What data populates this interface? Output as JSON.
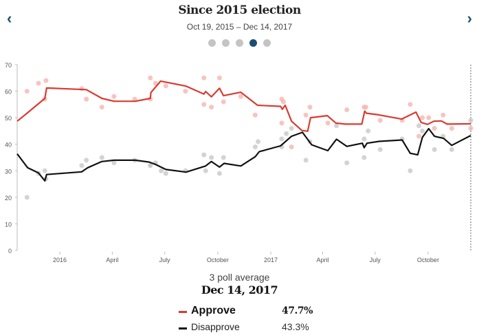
{
  "header": {
    "title": "Since 2015 election",
    "subtitle": "Oct 19, 2015 – Dec 14, 2017",
    "prev_icon": "chevron-left-icon",
    "next_icon": "chevron-right-icon",
    "pages": 5,
    "active_page": 4,
    "accent_color": "#1b4f72"
  },
  "legend": {
    "caption": "3 poll average",
    "date": "Dec 14, 2017",
    "items": [
      {
        "label": "Approve",
        "value": "47.7%",
        "color": "#d93a2f"
      },
      {
        "label": "Disapprove",
        "value": "43.3%",
        "color": "#111111"
      }
    ]
  },
  "chart_data": {
    "type": "line",
    "title": "Since 2015 election",
    "xlim": [
      "2015-10-19",
      "2017-12-14"
    ],
    "ylim": [
      0,
      70
    ],
    "yticks": [
      "0",
      "10",
      "20",
      "30",
      "40",
      "50",
      "60",
      "70"
    ],
    "xticks": [
      {
        "date": "2016-01-01",
        "label": "2016"
      },
      {
        "date": "2016-04-01",
        "label": "April"
      },
      {
        "date": "2016-07-01",
        "label": "July"
      },
      {
        "date": "2016-10-01",
        "label": "October"
      },
      {
        "date": "2017-01-01",
        "label": "2017"
      },
      {
        "date": "2017-04-01",
        "label": "April"
      },
      {
        "date": "2017-07-01",
        "label": "July"
      },
      {
        "date": "2017-10-01",
        "label": "October"
      }
    ],
    "grid": false,
    "series": [
      {
        "name": "Approve",
        "color": "#d93a2f",
        "poll_color": "#f5b5b0",
        "average": [
          [
            "2015-10-19",
            48.7
          ],
          [
            "2015-11-05",
            51.7
          ],
          [
            "2015-12-06",
            57.3
          ],
          [
            "2015-12-09",
            61.2
          ],
          [
            "2016-02-16",
            60.6
          ],
          [
            "2016-03-14",
            57.3
          ],
          [
            "2016-04-04",
            56.2
          ],
          [
            "2016-05-11",
            56.2
          ],
          [
            "2016-06-06",
            57.3
          ],
          [
            "2016-06-07",
            59.5
          ],
          [
            "2016-06-24",
            63.8
          ],
          [
            "2016-08-07",
            61.9
          ],
          [
            "2016-09-07",
            58.9
          ],
          [
            "2016-09-10",
            59.9
          ],
          [
            "2016-09-20",
            57.9
          ],
          [
            "2016-10-04",
            61.1
          ],
          [
            "2016-10-11",
            58.3
          ],
          [
            "2016-11-10",
            59.6
          ],
          [
            "2016-12-09",
            54.7
          ],
          [
            "2017-01-18",
            54.3
          ],
          [
            "2017-01-21",
            53.2
          ],
          [
            "2017-01-26",
            54.7
          ],
          [
            "2017-02-06",
            48.7
          ],
          [
            "2017-02-24",
            45.2
          ],
          [
            "2017-03-06",
            44.9
          ],
          [
            "2017-03-11",
            50.0
          ],
          [
            "2017-04-09",
            50.8
          ],
          [
            "2017-04-24",
            48.0
          ],
          [
            "2017-05-10",
            47.6
          ],
          [
            "2017-06-08",
            47.6
          ],
          [
            "2017-06-13",
            52.5
          ],
          [
            "2017-06-16",
            51.7
          ],
          [
            "2017-07-07",
            51.1
          ],
          [
            "2017-08-16",
            49.5
          ],
          [
            "2017-09-10",
            52.1
          ],
          [
            "2017-09-19",
            48.2
          ],
          [
            "2017-09-30",
            47.5
          ],
          [
            "2017-10-11",
            48.7
          ],
          [
            "2017-10-24",
            48.8
          ],
          [
            "2017-11-03",
            47.6
          ],
          [
            "2017-12-14",
            47.7
          ]
        ],
        "polls": [
          [
            "2015-11-05",
            60
          ],
          [
            "2015-11-25",
            63
          ],
          [
            "2015-12-06",
            57
          ],
          [
            "2015-12-08",
            64
          ],
          [
            "2016-02-08",
            61
          ],
          [
            "2016-02-16",
            57
          ],
          [
            "2016-03-14",
            54
          ],
          [
            "2016-04-04",
            58
          ],
          [
            "2016-05-10",
            57
          ],
          [
            "2016-06-06",
            65
          ],
          [
            "2016-06-06",
            57
          ],
          [
            "2016-06-15",
            63
          ],
          [
            "2016-07-03",
            62
          ],
          [
            "2016-08-06",
            60
          ],
          [
            "2016-09-07",
            65
          ],
          [
            "2016-09-07",
            55
          ],
          [
            "2016-09-20",
            54
          ],
          [
            "2016-10-04",
            65
          ],
          [
            "2016-10-11",
            56
          ],
          [
            "2016-11-10",
            58
          ],
          [
            "2016-12-05",
            51
          ],
          [
            "2017-01-20",
            57
          ],
          [
            "2017-01-23",
            56
          ],
          [
            "2017-01-20",
            48
          ],
          [
            "2017-02-06",
            39
          ],
          [
            "2017-03-03",
            51
          ],
          [
            "2017-03-10",
            54
          ],
          [
            "2017-04-10",
            48
          ],
          [
            "2017-05-13",
            53
          ],
          [
            "2017-06-12",
            54
          ],
          [
            "2017-06-15",
            54
          ],
          [
            "2017-07-10",
            49
          ],
          [
            "2017-08-17",
            49
          ],
          [
            "2017-08-31",
            55
          ],
          [
            "2017-09-15",
            43
          ],
          [
            "2017-09-21",
            50
          ],
          [
            "2017-10-02",
            50
          ],
          [
            "2017-10-12",
            46
          ],
          [
            "2017-10-27",
            51
          ],
          [
            "2017-11-11",
            46
          ],
          [
            "2017-12-14",
            46
          ]
        ]
      },
      {
        "name": "Disapprove",
        "color": "#111111",
        "poll_color": "#c8c8c8",
        "average": [
          [
            "2015-10-19",
            36.4
          ],
          [
            "2015-11-06",
            31.2
          ],
          [
            "2015-11-25",
            29.2
          ],
          [
            "2015-12-06",
            26.2
          ],
          [
            "2015-12-09",
            28.6
          ],
          [
            "2016-02-08",
            29.6
          ],
          [
            "2016-02-18",
            31.1
          ],
          [
            "2016-03-14",
            33.5
          ],
          [
            "2016-04-04",
            34.0
          ],
          [
            "2016-05-11",
            34.0
          ],
          [
            "2016-06-04",
            33.3
          ],
          [
            "2016-06-15",
            32.4
          ],
          [
            "2016-07-03",
            30.5
          ],
          [
            "2016-08-07",
            29.5
          ],
          [
            "2016-09-10",
            31.8
          ],
          [
            "2016-09-20",
            33.5
          ],
          [
            "2016-10-04",
            31.4
          ],
          [
            "2016-10-12",
            32.8
          ],
          [
            "2016-11-10",
            31.8
          ],
          [
            "2016-12-05",
            35.3
          ],
          [
            "2016-12-12",
            37.2
          ],
          [
            "2017-01-18",
            39.4
          ],
          [
            "2017-02-06",
            43.0
          ],
          [
            "2017-02-25",
            44.5
          ],
          [
            "2017-03-13",
            39.8
          ],
          [
            "2017-04-10",
            37.6
          ],
          [
            "2017-04-25",
            41.9
          ],
          [
            "2017-05-13",
            39.2
          ],
          [
            "2017-06-09",
            40.4
          ],
          [
            "2017-06-12",
            38.7
          ],
          [
            "2017-06-17",
            40.4
          ],
          [
            "2017-07-08",
            41.1
          ],
          [
            "2017-08-17",
            41.6
          ],
          [
            "2017-08-31",
            36.6
          ],
          [
            "2017-09-13",
            36.0
          ],
          [
            "2017-09-21",
            42.6
          ],
          [
            "2017-10-02",
            45.9
          ],
          [
            "2017-10-12",
            43.0
          ],
          [
            "2017-10-28",
            42.2
          ],
          [
            "2017-11-11",
            39.6
          ],
          [
            "2017-12-14",
            43.3
          ]
        ],
        "polls": [
          [
            "2015-11-05",
            20
          ],
          [
            "2015-11-25",
            29
          ],
          [
            "2015-12-06",
            30
          ],
          [
            "2015-12-08",
            27
          ],
          [
            "2016-02-08",
            32
          ],
          [
            "2016-02-16",
            34
          ],
          [
            "2016-03-14",
            35
          ],
          [
            "2016-04-04",
            33
          ],
          [
            "2016-05-10",
            34
          ],
          [
            "2016-06-06",
            32
          ],
          [
            "2016-06-06",
            32
          ],
          [
            "2016-06-15",
            33
          ],
          [
            "2016-06-25",
            30
          ],
          [
            "2016-07-03",
            29
          ],
          [
            "2016-08-06",
            30
          ],
          [
            "2016-09-07",
            36
          ],
          [
            "2016-09-10",
            30
          ],
          [
            "2016-09-20",
            35
          ],
          [
            "2016-10-04",
            29
          ],
          [
            "2016-10-11",
            35
          ],
          [
            "2016-12-05",
            39
          ],
          [
            "2016-12-10",
            41
          ],
          [
            "2017-01-20",
            42
          ],
          [
            "2017-01-20",
            39
          ],
          [
            "2017-01-28",
            44
          ],
          [
            "2017-02-06",
            46
          ],
          [
            "2017-03-03",
            34
          ],
          [
            "2017-03-10",
            41
          ],
          [
            "2017-04-25",
            47
          ],
          [
            "2017-05-13",
            33
          ],
          [
            "2017-06-12",
            42
          ],
          [
            "2017-06-12",
            35
          ],
          [
            "2017-06-19",
            45
          ],
          [
            "2017-07-10",
            38
          ],
          [
            "2017-08-17",
            42
          ],
          [
            "2017-08-31",
            30
          ],
          [
            "2017-09-15",
            47
          ],
          [
            "2017-09-21",
            45
          ],
          [
            "2017-10-12",
            38
          ],
          [
            "2017-10-27",
            43
          ],
          [
            "2017-11-11",
            38
          ],
          [
            "2017-12-14",
            49
          ]
        ]
      }
    ]
  }
}
